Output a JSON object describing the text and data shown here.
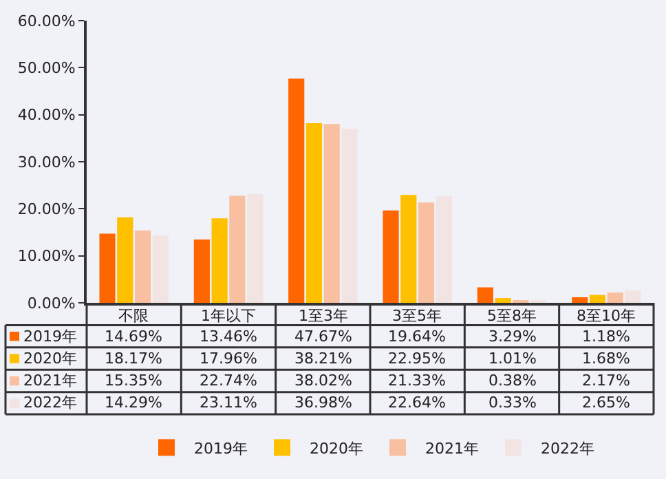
{
  "chart_data": {
    "type": "bar",
    "categories": [
      "不限",
      "1年以下",
      "1至3年",
      "3至5年",
      "5至8年",
      "8至10年"
    ],
    "series": [
      {
        "name": "2019年",
        "color": "#ff6600",
        "values": [
          14.69,
          13.46,
          47.67,
          19.64,
          3.29,
          1.18
        ],
        "value_labels": [
          "14.69%",
          "13.46%",
          "47.67%",
          "19.64%",
          "3.29%",
          "1.18%"
        ]
      },
      {
        "name": "2020年",
        "color": "#ffc000",
        "values": [
          18.17,
          17.96,
          38.21,
          22.95,
          1.01,
          1.68
        ],
        "value_labels": [
          "18.17%",
          "17.96%",
          "38.21%",
          "22.95%",
          "1.01%",
          "1.68%"
        ]
      },
      {
        "name": "2021年",
        "color": "#f8bfa0",
        "values": [
          15.35,
          22.74,
          38.02,
          21.33,
          0.38,
          2.17
        ],
        "value_labels": [
          "15.35%",
          "22.74%",
          "38.02%",
          "21.33%",
          "0.38%",
          "2.17%"
        ]
      },
      {
        "name": "2022年",
        "color": "#f2e4e2",
        "values": [
          14.29,
          23.11,
          36.98,
          22.64,
          0.33,
          2.65
        ],
        "value_labels": [
          "14.29%",
          "23.11%",
          "36.98%",
          "22.64%",
          "0.33%",
          "2.65%"
        ]
      }
    ],
    "ylim": [
      0,
      60
    ],
    "yticks": [
      {
        "value": 0,
        "label": "0.00%"
      },
      {
        "value": 10,
        "label": "10.00%"
      },
      {
        "value": 20,
        "label": "20.00%"
      },
      {
        "value": 30,
        "label": "30.00%"
      },
      {
        "value": 40,
        "label": "40.00%"
      },
      {
        "value": 50,
        "label": "50.00%"
      },
      {
        "value": 60,
        "label": "60.00%"
      }
    ],
    "grid": false,
    "legend": "bottom"
  }
}
